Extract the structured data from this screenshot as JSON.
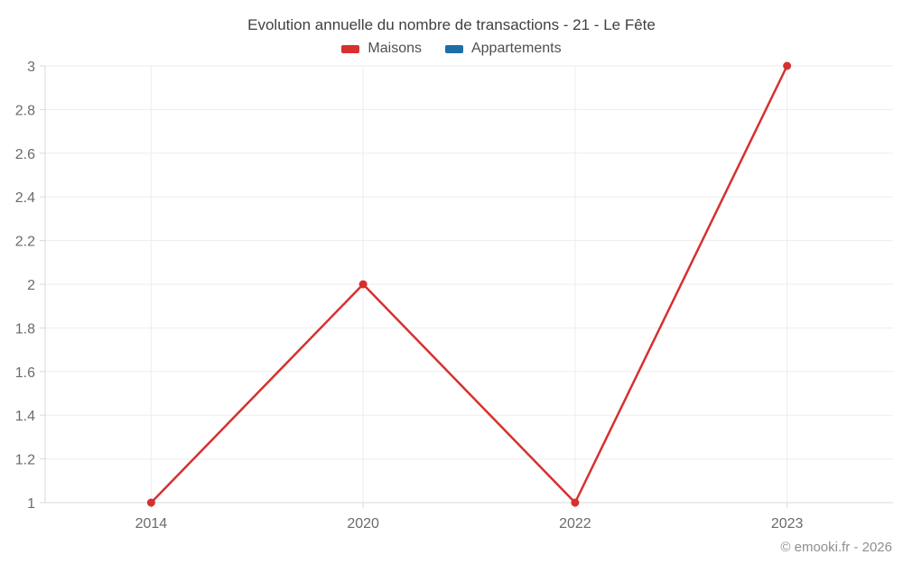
{
  "chart_data": {
    "type": "line",
    "title": "Evolution annuelle du nombre de transactions - 21 - Le Fête",
    "categories": [
      "2014",
      "2020",
      "2022",
      "2023"
    ],
    "series": [
      {
        "name": "Maisons",
        "color": "#d6302f",
        "values": [
          1,
          2,
          1,
          3
        ]
      },
      {
        "name": "Appartements",
        "color": "#1d6fa5",
        "values": []
      }
    ],
    "y_axis": {
      "min": 1,
      "max": 3,
      "tick_step": 0.2,
      "tick_labels": [
        "1",
        "1.2",
        "1.4",
        "1.6",
        "1.8",
        "2",
        "2.2",
        "2.4",
        "2.6",
        "2.8",
        "3"
      ]
    },
    "x_label": "",
    "y_label": "",
    "grid": true,
    "legend_position": "top",
    "footer": "© emooki.fr - 2026"
  },
  "colors": {
    "gridline": "#ededed",
    "axis": "#d9d9d9",
    "tick_label": "#6b6b6b",
    "title_text": "#404040",
    "footer_text": "#8f8f8f"
  }
}
